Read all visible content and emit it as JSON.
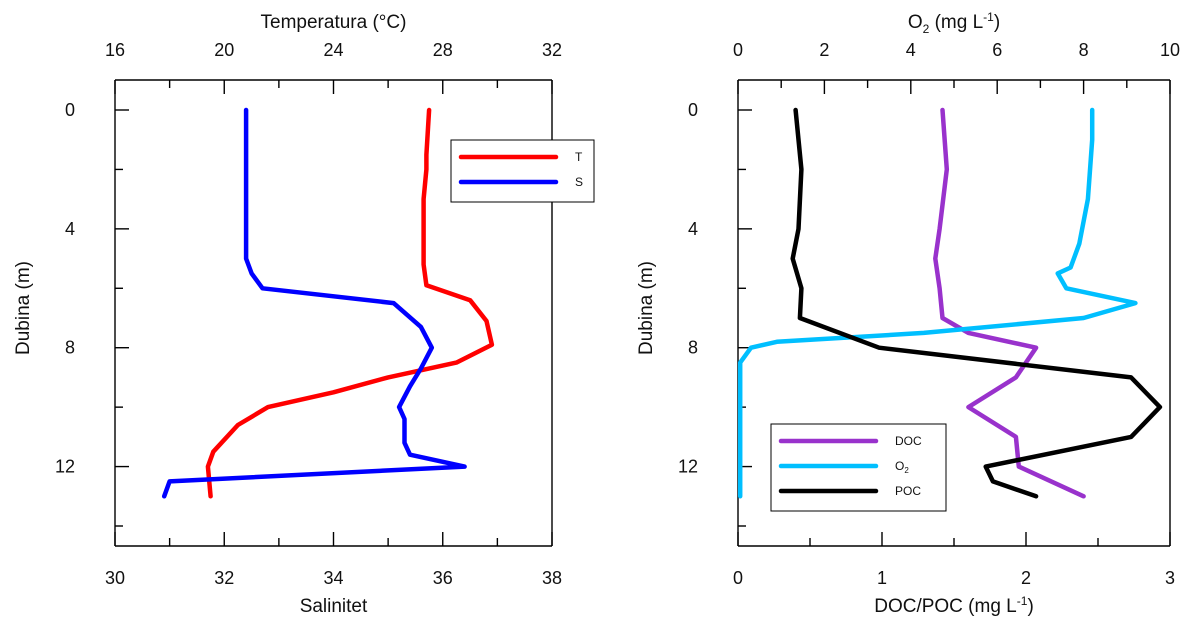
{
  "chart_data": [
    {
      "type": "line",
      "panel": "left",
      "ylabel": "Dubina (m)",
      "ylim": [
        0,
        14
      ],
      "y_reversed": true,
      "y_ticks": [
        0,
        4,
        8,
        12
      ],
      "x_top": {
        "label": "Temperatura (°C)",
        "lim": [
          16,
          32
        ],
        "ticks": [
          16,
          20,
          24,
          28,
          32
        ]
      },
      "x_bottom": {
        "label": "Salinitet",
        "lim": [
          30,
          38
        ],
        "ticks": [
          30,
          32,
          34,
          36,
          38
        ]
      },
      "legend_position": "top-right",
      "series": [
        {
          "name": "T",
          "axis": "top",
          "color": "#ff0000",
          "points": [
            [
              27.5,
              0
            ],
            [
              27.4,
              1.5
            ],
            [
              27.4,
              2
            ],
            [
              27.3,
              3
            ],
            [
              27.3,
              5.2
            ],
            [
              27.4,
              5.9
            ],
            [
              29.0,
              6.4
            ],
            [
              29.6,
              7.1
            ],
            [
              29.8,
              7.9
            ],
            [
              28.5,
              8.5
            ],
            [
              26.0,
              9.0
            ],
            [
              24.0,
              9.5
            ],
            [
              21.6,
              10.0
            ],
            [
              20.5,
              10.6
            ],
            [
              19.6,
              11.5
            ],
            [
              19.4,
              12.0
            ],
            [
              19.5,
              13.0
            ]
          ]
        },
        {
          "name": "S",
          "axis": "bottom",
          "color": "#0000ff",
          "points": [
            [
              32.4,
              0
            ],
            [
              32.4,
              2
            ],
            [
              32.4,
              4
            ],
            [
              32.4,
              5.0
            ],
            [
              32.5,
              5.5
            ],
            [
              32.7,
              6.0
            ],
            [
              35.1,
              6.5
            ],
            [
              35.6,
              7.3
            ],
            [
              35.8,
              8.0
            ],
            [
              35.6,
              8.7
            ],
            [
              35.4,
              9.3
            ],
            [
              35.2,
              10.0
            ],
            [
              35.3,
              10.4
            ],
            [
              35.3,
              11.2
            ],
            [
              35.4,
              11.6
            ],
            [
              36.4,
              12.0
            ],
            [
              31.0,
              12.5
            ],
            [
              30.9,
              13.0
            ]
          ]
        }
      ]
    },
    {
      "type": "line",
      "panel": "right",
      "ylabel": "Dubina (m)",
      "ylim": [
        0,
        14
      ],
      "y_reversed": true,
      "y_ticks": [
        0,
        4,
        8,
        12
      ],
      "x_top": {
        "label_main": "O",
        "label_sub": "2",
        "label_rest": " (mg L",
        "label_sup": "-1",
        "label_close": ")",
        "lim": [
          0,
          10
        ],
        "ticks": [
          0,
          2,
          4,
          6,
          8,
          10
        ]
      },
      "x_bottom": {
        "label_main": "DOC/POC (mg L",
        "label_sup": "-1",
        "label_close": ")",
        "lim": [
          0,
          3
        ],
        "ticks": [
          0,
          1,
          2,
          3
        ]
      },
      "legend_position": "bottom-left",
      "series": [
        {
          "name": "DOC",
          "axis": "bottom",
          "color": "#9932cc",
          "points": [
            [
              1.42,
              0
            ],
            [
              1.45,
              2
            ],
            [
              1.4,
              4
            ],
            [
              1.37,
              5
            ],
            [
              1.4,
              6
            ],
            [
              1.42,
              7
            ],
            [
              1.6,
              7.5
            ],
            [
              2.07,
              8.0
            ],
            [
              1.93,
              9.0
            ],
            [
              1.6,
              10.0
            ],
            [
              1.93,
              11.0
            ],
            [
              1.95,
              12.0
            ],
            [
              2.4,
              13.0
            ]
          ]
        },
        {
          "name": "O",
          "name_sub": "2",
          "axis": "top",
          "color": "#00bfff",
          "points": [
            [
              8.2,
              0
            ],
            [
              8.2,
              1
            ],
            [
              8.1,
              3
            ],
            [
              7.9,
              4.5
            ],
            [
              7.7,
              5.3
            ],
            [
              7.4,
              5.5
            ],
            [
              7.6,
              6.0
            ],
            [
              9.2,
              6.5
            ],
            [
              8.0,
              7.0
            ],
            [
              4.3,
              7.5
            ],
            [
              0.9,
              7.8
            ],
            [
              0.3,
              8.0
            ],
            [
              0.05,
              8.5
            ],
            [
              0.05,
              13.0
            ]
          ]
        },
        {
          "name": "POC",
          "axis": "bottom",
          "color": "#000000",
          "points": [
            [
              0.4,
              0
            ],
            [
              0.44,
              2
            ],
            [
              0.42,
              4
            ],
            [
              0.38,
              5
            ],
            [
              0.44,
              6
            ],
            [
              0.43,
              7
            ],
            [
              0.98,
              8.0
            ],
            [
              2.73,
              9.0
            ],
            [
              2.93,
              10.0
            ],
            [
              2.73,
              11.0
            ],
            [
              1.72,
              12.0
            ],
            [
              1.77,
              12.5
            ],
            [
              2.07,
              13.0
            ]
          ]
        }
      ]
    }
  ]
}
